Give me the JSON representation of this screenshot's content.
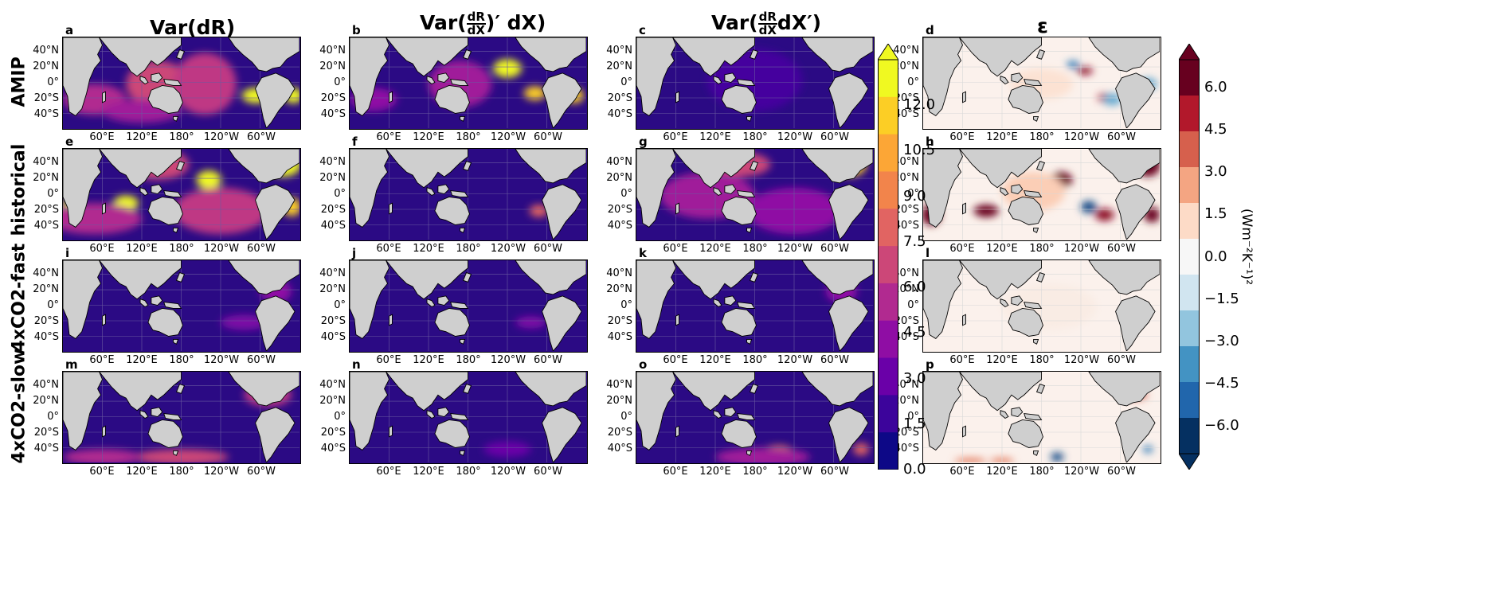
{
  "column_titles": {
    "a": "Var(dR)",
    "b_prefix": "Var(",
    "b_num": "dR",
    "b_den": "dX",
    "b_suffix": ")′ dX)",
    "c_prefix": "Var(",
    "c_num": "dR",
    "c_den": "dX",
    "c_suffix": "dX′)",
    "d": "ε"
  },
  "row_labels": [
    "AMIP",
    "historical",
    "4xCO2-fast",
    "4xCO2-slow"
  ],
  "panel_letters": [
    "a",
    "b",
    "c",
    "d",
    "e",
    "f",
    "g",
    "h",
    "i",
    "j",
    "k",
    "l",
    "m",
    "n",
    "o",
    "p"
  ],
  "lat_ticks": [
    "40°N",
    "20°N",
    "0°",
    "20°S",
    "40°S"
  ],
  "lon_ticks": [
    "60°E",
    "120°E",
    "180°",
    "120°W",
    "60°W"
  ],
  "colorbar_main": {
    "ticks": [
      "0.0",
      "1.5",
      "3.0",
      "4.5",
      "6.0",
      "7.5",
      "9.0",
      "10.5",
      "12.0"
    ],
    "vmin": 0,
    "vmax": 13.5,
    "extend": "max",
    "colors": [
      "#0d0887",
      "#3c049b",
      "#6a00a8",
      "#8f0da4",
      "#b12a90",
      "#cc4778",
      "#e16462",
      "#f2844b",
      "#fca636",
      "#fcce25",
      "#f0f921"
    ]
  },
  "colorbar_eps": {
    "ticks": [
      "6.0",
      "4.5",
      "3.0",
      "1.5",
      "0.0",
      "−1.5",
      "−3.0",
      "−4.5",
      "−6.0"
    ],
    "vmin": -7,
    "vmax": 7,
    "extend": "both",
    "label": "(Wm⁻²K⁻¹)²",
    "colors": [
      "#67001f",
      "#b2182b",
      "#d6604d",
      "#f4a582",
      "#fddbc7",
      "#f7f7f7",
      "#d1e5f0",
      "#92c5de",
      "#4393c3",
      "#2166ac",
      "#053061"
    ]
  }
}
